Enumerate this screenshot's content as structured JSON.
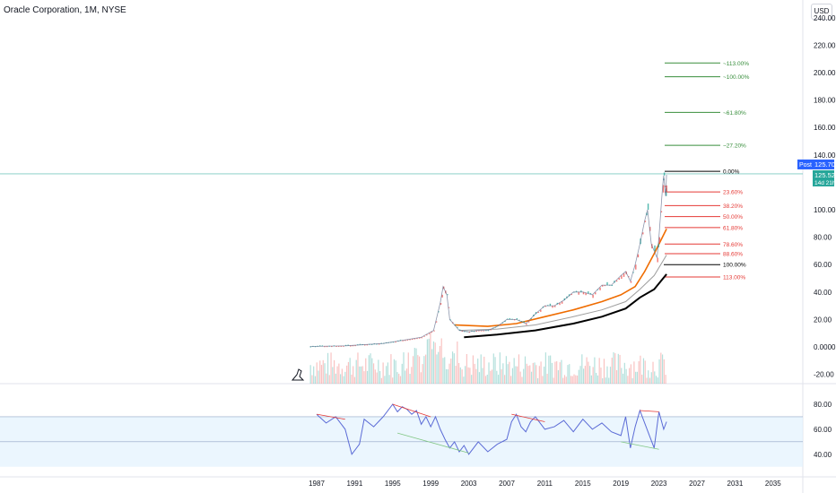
{
  "header": {
    "title": "Oracle Corporation, 1M, NYSE",
    "currency": "USD"
  },
  "price_axis": {
    "ticks": [
      "240.00",
      "220.00",
      "200.00",
      "180.00",
      "160.00",
      "140.00",
      "100.00",
      "80.00",
      "60.00",
      "40.00",
      "20.00",
      "0.0000",
      "-20.00"
    ]
  },
  "rsi_axis": {
    "ticks": [
      "80.00",
      "60.00",
      "40.00"
    ]
  },
  "time_axis": {
    "ticks": [
      "1987",
      "1991",
      "1995",
      "1999",
      "2003",
      "2007",
      "2011",
      "2015",
      "2019",
      "2023",
      "2027",
      "2031",
      "2035"
    ]
  },
  "badges": {
    "post_label": "Post",
    "post_price": "125.70",
    "last_price": "125.52",
    "countdown": "14d 21h"
  },
  "colors": {
    "green": "#26a69a",
    "red": "#ef5350",
    "fib_green": "#388e3c",
    "fib_red": "#e53935",
    "rsi": "#5b6bd6",
    "ma_orange": "#ef6c00",
    "ma_black": "#000000",
    "ma_gray": "#9e9e9e",
    "blue_badge": "#2962ff",
    "current_line": "#26a69a"
  },
  "chart_data": {
    "type": "line",
    "title": "Oracle Corporation, 1M, NYSE",
    "x_range": [
      1986,
      2036
    ],
    "y_range": [
      -25,
      245
    ],
    "price": {
      "x": [
        1986.3,
        1990,
        1994,
        1998,
        1999.3,
        2000.0,
        2000.3,
        2000.7,
        2001,
        2002,
        2003,
        2004,
        2005,
        2006,
        2007,
        2008,
        2009,
        2010,
        2011,
        2012,
        2013,
        2014,
        2015,
        2016,
        2017,
        2018,
        2019,
        2019.5,
        2020,
        2020.5,
        2021,
        2021.5,
        2021.8,
        2022.2,
        2022.8,
        2023.0,
        2023.4,
        2023.5,
        2023.7,
        2023.8
      ],
      "values": [
        0.3,
        0.8,
        2.5,
        7,
        12,
        32,
        44,
        38,
        20,
        12,
        11,
        12,
        12,
        15,
        20,
        20,
        17,
        24,
        30,
        30,
        34,
        40,
        40,
        38,
        45,
        45,
        52,
        55,
        48,
        60,
        75,
        92,
        100,
        75,
        65,
        80,
        118,
        125,
        110,
        125.5
      ]
    },
    "ma_orange": {
      "x": [
        2001.5,
        2005,
        2008,
        2011,
        2014,
        2017,
        2019,
        2020.5,
        2021.5,
        2022.5,
        2023.8
      ],
      "values": [
        16,
        15,
        17,
        22,
        27,
        33,
        38,
        44,
        55,
        68,
        86
      ]
    },
    "ma_gray": {
      "x": [
        2002,
        2006,
        2010,
        2014,
        2017,
        2019.5,
        2021,
        2022.5,
        2023.8
      ],
      "values": [
        12,
        13,
        16,
        22,
        27,
        33,
        42,
        52,
        67
      ]
    },
    "ma_black": {
      "x": [
        2002.5,
        2006,
        2010,
        2014,
        2017,
        2019.5,
        2021,
        2022.5,
        2023.8
      ],
      "values": [
        7,
        9,
        12,
        17,
        22,
        28,
        36,
        42,
        53
      ]
    },
    "fib_levels": [
      {
        "label": "~113.00%",
        "value": 207,
        "side": "upper"
      },
      {
        "label": "~100.00%",
        "value": 197,
        "side": "upper"
      },
      {
        "label": "~61.80%",
        "value": 171,
        "side": "upper"
      },
      {
        "label": "~27.20%",
        "value": 147,
        "side": "upper"
      },
      {
        "label": "0.00%",
        "value": 128,
        "side": "zero"
      },
      {
        "label": "23.60%",
        "value": 113,
        "side": "lower"
      },
      {
        "label": "38.20%",
        "value": 103,
        "side": "lower"
      },
      {
        "label": "50.00%",
        "value": 95,
        "side": "lower"
      },
      {
        "label": "61.80%",
        "value": 87,
        "side": "lower"
      },
      {
        "label": "78.60%",
        "value": 75,
        "side": "lower"
      },
      {
        "label": "88.60%",
        "value": 68,
        "side": "lower"
      },
      {
        "label": "100.00%",
        "value": 60,
        "side": "base"
      },
      {
        "label": "113.00%",
        "value": 51,
        "side": "lower"
      }
    ],
    "current_price": 125.52,
    "rsi": {
      "y_range": [
        30,
        95
      ],
      "band": [
        70,
        30
      ],
      "mid": 50,
      "x": [
        1987,
        1988,
        1989,
        1990,
        1990.7,
        1991.5,
        1992,
        1993,
        1994,
        1995,
        1995.5,
        1996,
        1996.5,
        1997,
        1997.5,
        1998,
        1998.5,
        1999,
        1999.5,
        2000,
        2000.5,
        2001,
        2001.5,
        2002,
        2002.5,
        2003,
        2004,
        2005,
        2006,
        2007,
        2007.5,
        2008,
        2008.5,
        2009,
        2009.5,
        2010,
        2011,
        2012,
        2013,
        2014,
        2015,
        2016,
        2017,
        2018,
        2019,
        2019.5,
        2020,
        2020.5,
        2021,
        2021.5,
        2022,
        2022.5,
        2023,
        2023.5,
        2023.8
      ],
      "values": [
        72,
        65,
        70,
        60,
        40,
        48,
        68,
        62,
        70,
        80,
        74,
        78,
        76,
        72,
        75,
        64,
        70,
        62,
        70,
        60,
        52,
        45,
        50,
        42,
        47,
        40,
        50,
        42,
        48,
        52,
        66,
        72,
        62,
        58,
        66,
        70,
        60,
        62,
        67,
        58,
        68,
        60,
        65,
        58,
        55,
        70,
        45,
        62,
        75,
        65,
        55,
        45,
        74,
        60,
        66
      ]
    }
  }
}
